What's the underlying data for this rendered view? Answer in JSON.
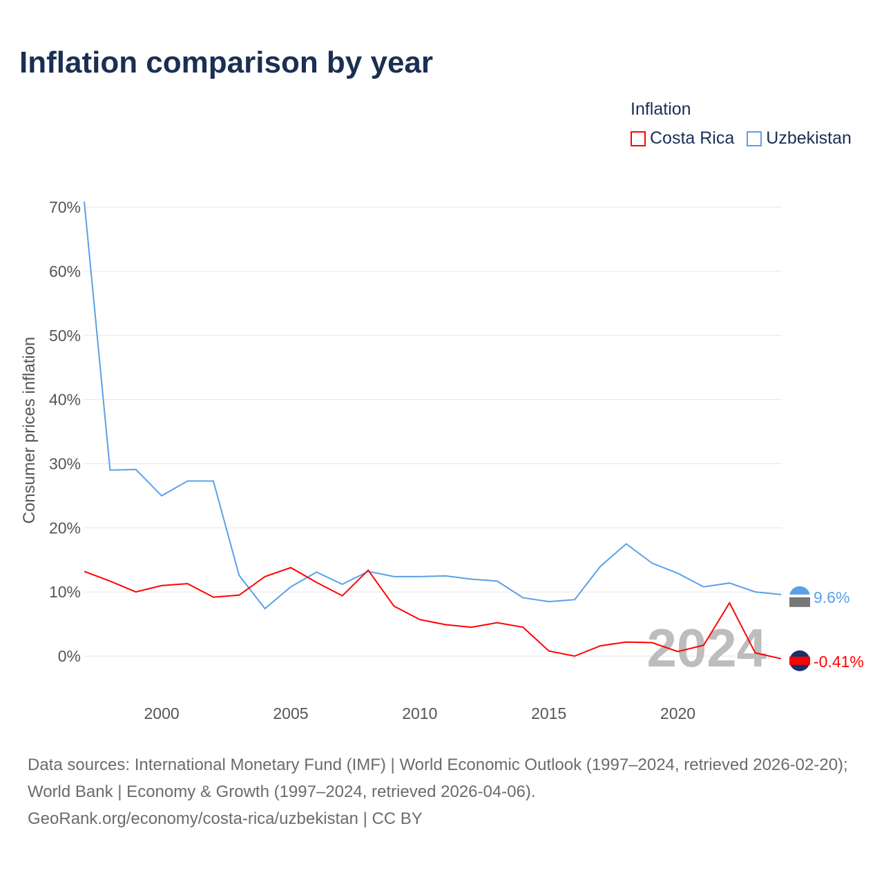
{
  "chart_data": {
    "type": "line",
    "title": "Inflation comparison by year",
    "ylabel": "Consumer prices inflation",
    "xlabel": "",
    "legend_title": "Inflation",
    "legend_position": "top-right",
    "xlim": [
      1997,
      2024
    ],
    "ylim": [
      -5,
      70
    ],
    "x_ticks": [
      2000,
      2005,
      2010,
      2015,
      2020
    ],
    "y_ticks": [
      0,
      10,
      20,
      30,
      40,
      50,
      60,
      70
    ],
    "y_tick_labels": [
      "0%",
      "10%",
      "20%",
      "30%",
      "40%",
      "50%",
      "60%",
      "70%"
    ],
    "grid": true,
    "year_watermark": "2024",
    "x": [
      1997,
      1998,
      1999,
      2000,
      2001,
      2002,
      2003,
      2004,
      2005,
      2006,
      2007,
      2008,
      2009,
      2010,
      2011,
      2012,
      2013,
      2014,
      2015,
      2016,
      2017,
      2018,
      2019,
      2020,
      2021,
      2022,
      2023,
      2024
    ],
    "series": [
      {
        "name": "Costa Rica",
        "color": "#ff0000",
        "end_label": "-0.41%",
        "values": [
          13.2,
          11.7,
          10.0,
          11.0,
          11.3,
          9.2,
          9.5,
          12.4,
          13.8,
          11.5,
          9.4,
          13.4,
          7.8,
          5.7,
          4.9,
          4.5,
          5.2,
          4.5,
          0.8,
          0.0,
          1.6,
          2.2,
          2.1,
          0.7,
          1.7,
          8.3,
          0.5,
          -0.41
        ]
      },
      {
        "name": "Uzbekistan",
        "color": "#5aa0e8",
        "end_label": "9.6%",
        "values": [
          70.9,
          29.0,
          29.1,
          25.0,
          27.3,
          27.3,
          12.6,
          7.4,
          10.8,
          13.1,
          11.2,
          13.2,
          12.4,
          12.4,
          12.5,
          12.0,
          11.7,
          9.1,
          8.5,
          8.8,
          14.0,
          17.5,
          14.5,
          12.9,
          10.8,
          11.4,
          10.0,
          9.6
        ]
      }
    ]
  },
  "footer": {
    "sources": "Data sources: International Monetary Fund (IMF) | World Economic Outlook (1997–2024, retrieved 2026-02-20); World Bank | Economy & Growth (1997–2024, retrieved 2026-04-06).",
    "link": "GeoRank.org/economy/costa-rica/uzbekistan | CC BY"
  }
}
